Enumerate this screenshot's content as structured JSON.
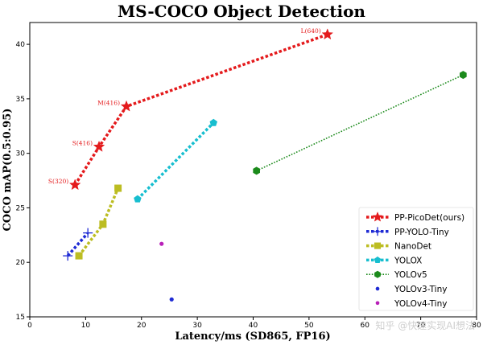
{
  "chart_data": {
    "type": "line",
    "title": "MS-COCO Object Detection",
    "xlabel": "Latency/ms (SD865, FP16)",
    "ylabel": "COCO mAP(0.5:0.95)",
    "xlim": [
      0,
      80
    ],
    "ylim": [
      15,
      42
    ],
    "xticks": [
      0,
      10,
      20,
      30,
      40,
      50,
      60,
      70,
      80
    ],
    "yticks": [
      15,
      20,
      25,
      30,
      35,
      40
    ],
    "legend_position": "bottom-right",
    "watermark": "知乎 @快速实现AI想法",
    "series": [
      {
        "name": "PP-PicoDet(ours)",
        "color": "#e41a1c",
        "marker": "star",
        "line": "dotted",
        "x": [
          8.1,
          12.4,
          17.3,
          53.3
        ],
        "y": [
          27.1,
          30.6,
          34.3,
          40.9
        ],
        "labels": [
          "S(320)",
          "S(416)",
          "M(416)",
          "L(640)"
        ]
      },
      {
        "name": "PP-YOLO-Tiny",
        "color": "#1f2bd4",
        "marker": "plus",
        "line": "dotted",
        "x": [
          6.8,
          10.4
        ],
        "y": [
          20.6,
          22.7
        ]
      },
      {
        "name": "NanoDet",
        "color": "#bcbd22",
        "marker": "square",
        "line": "dotted",
        "x": [
          8.8,
          13.1,
          15.8
        ],
        "y": [
          20.6,
          23.5,
          26.8
        ]
      },
      {
        "name": "YOLOX",
        "color": "#17becf",
        "marker": "pentagon",
        "line": "dotted",
        "x": [
          19.3,
          32.9
        ],
        "y": [
          25.8,
          32.8
        ]
      },
      {
        "name": "YOLOv5",
        "color": "#1b8a1b",
        "marker": "hexagon",
        "line": "dotted-thin",
        "x": [
          40.6,
          77.6
        ],
        "y": [
          28.4,
          37.2
        ]
      },
      {
        "name": "YOLOv3-Tiny",
        "color": "#1f2bd4",
        "marker": "dot",
        "line": "none",
        "x": [
          25.4
        ],
        "y": [
          16.6
        ]
      },
      {
        "name": "YOLOv4-Tiny",
        "color": "#b81fb8",
        "marker": "dot",
        "line": "none",
        "x": [
          23.6
        ],
        "y": [
          21.7
        ]
      }
    ]
  }
}
